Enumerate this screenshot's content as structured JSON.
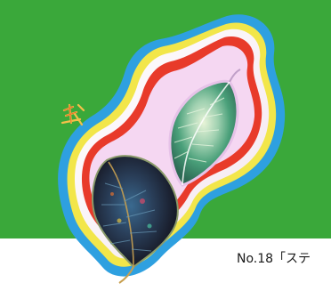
{
  "artwork": {
    "background_color": "#3aa83a",
    "outline_colors": [
      "#2ea0e0",
      "#f2e64a",
      "#ffffff",
      "#e83a2a",
      "#d9a0e8",
      "#3aa0d8"
    ],
    "signature_mark": "美"
  },
  "caption": {
    "text": "No.18「ステ"
  }
}
